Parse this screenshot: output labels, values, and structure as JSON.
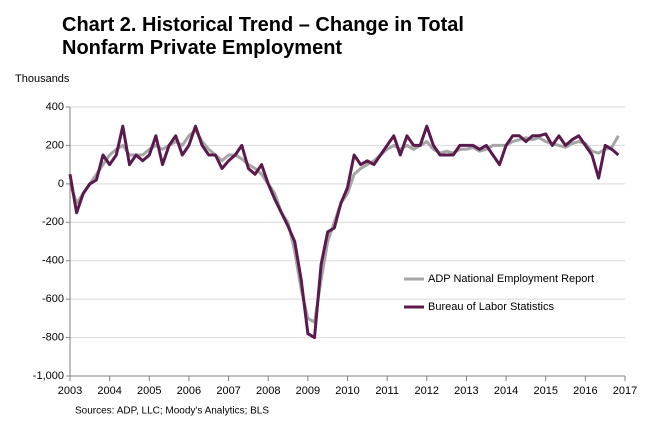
{
  "chart_data": {
    "type": "line",
    "title": "Chart 2. Historical Trend – Change in Total Nonfarm Private Employment",
    "y_label": "Thousands",
    "source": "Sources: ADP, LLC; Moody's Analytics; BLS",
    "x": [
      2003,
      2003.167,
      2003.333,
      2003.5,
      2003.667,
      2003.833,
      2004,
      2004.167,
      2004.333,
      2004.5,
      2004.667,
      2004.833,
      2005,
      2005.167,
      2005.333,
      2005.5,
      2005.667,
      2005.833,
      2006,
      2006.167,
      2006.333,
      2006.5,
      2006.667,
      2006.833,
      2007,
      2007.167,
      2007.333,
      2007.5,
      2007.667,
      2007.833,
      2008,
      2008.167,
      2008.333,
      2008.5,
      2008.667,
      2008.833,
      2009,
      2009.167,
      2009.333,
      2009.5,
      2009.667,
      2009.833,
      2010,
      2010.167,
      2010.333,
      2010.5,
      2010.667,
      2010.833,
      2011,
      2011.167,
      2011.333,
      2011.5,
      2011.667,
      2011.833,
      2012,
      2012.167,
      2012.333,
      2012.5,
      2012.667,
      2012.833,
      2013,
      2013.167,
      2013.333,
      2013.5,
      2013.667,
      2013.833,
      2014,
      2014.167,
      2014.333,
      2014.5,
      2014.667,
      2014.833,
      2015,
      2015.167,
      2015.333,
      2015.5,
      2015.667,
      2015.833,
      2016,
      2016.167,
      2016.333,
      2016.5,
      2016.667,
      2016.833
    ],
    "series": [
      {
        "name": "ADP National Employment Report",
        "color": "#a6a6a6",
        "values": [
          0,
          -100,
          -50,
          0,
          50,
          100,
          150,
          180,
          200,
          150,
          150,
          150,
          180,
          200,
          180,
          200,
          220,
          200,
          250,
          280,
          220,
          180,
          150,
          120,
          150,
          150,
          130,
          100,
          80,
          50,
          0,
          -50,
          -150,
          -200,
          -350,
          -550,
          -700,
          -720,
          -500,
          -300,
          -200,
          -100,
          -50,
          50,
          80,
          100,
          120,
          150,
          180,
          200,
          180,
          200,
          180,
          200,
          220,
          180,
          160,
          170,
          160,
          180,
          180,
          190,
          170,
          180,
          200,
          200,
          200,
          220,
          230,
          240,
          230,
          240,
          220,
          210,
          200,
          190,
          210,
          220,
          210,
          170,
          160,
          180,
          190,
          250
        ]
      },
      {
        "name": "Bureau of Labor Statistics",
        "color": "#5b1a4e",
        "values": [
          50,
          -150,
          -50,
          0,
          20,
          150,
          100,
          150,
          300,
          100,
          150,
          120,
          150,
          250,
          100,
          200,
          250,
          150,
          200,
          300,
          200,
          150,
          150,
          80,
          120,
          150,
          200,
          80,
          50,
          100,
          0,
          -80,
          -150,
          -220,
          -300,
          -500,
          -780,
          -800,
          -420,
          -250,
          -230,
          -100,
          -20,
          150,
          100,
          120,
          100,
          150,
          200,
          250,
          150,
          250,
          200,
          200,
          300,
          200,
          150,
          150,
          150,
          200,
          200,
          200,
          180,
          200,
          150,
          100,
          200,
          250,
          250,
          220,
          250,
          250,
          260,
          200,
          250,
          200,
          230,
          250,
          200,
          150,
          30,
          200,
          180,
          150
        ]
      }
    ],
    "xlim": [
      2003,
      2017
    ],
    "xticks": [
      2003,
      2004,
      2005,
      2006,
      2007,
      2008,
      2009,
      2010,
      2011,
      2012,
      2013,
      2014,
      2015,
      2016,
      2017
    ],
    "ylim": [
      -1000,
      400
    ],
    "yticks": [
      {
        "value": -1000,
        "label": "-1,000"
      },
      -800,
      -600,
      -400,
      -200,
      0,
      200,
      400
    ],
    "grid": true
  }
}
